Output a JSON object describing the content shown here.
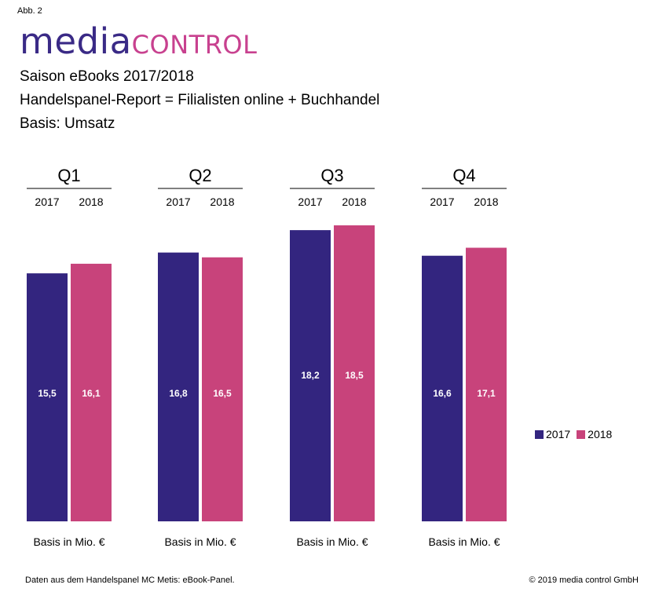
{
  "header": {
    "fig_label": "Abb. 2",
    "logo_part1": "media",
    "logo_part2": "control",
    "line1": "Saison eBooks 2017/2018",
    "line2": "Handelspanel-Report = Filialisten online + Buchhandel",
    "line3": "Basis: Umsatz"
  },
  "colors": {
    "series_2017": "#33257f",
    "series_2018": "#c8437b"
  },
  "chart_data": {
    "type": "bar",
    "categories": [
      "Q1",
      "Q2",
      "Q3",
      "Q4"
    ],
    "year_labels": [
      "2017",
      "2018"
    ],
    "series": [
      {
        "name": "2017",
        "values": [
          15.5,
          16.8,
          18.2,
          16.6
        ],
        "labels": [
          "15,5",
          "16,8",
          "18,2",
          "16,6"
        ]
      },
      {
        "name": "2018",
        "values": [
          16.1,
          16.5,
          18.5,
          17.1
        ],
        "labels": [
          "16,1",
          "16,5",
          "18,5",
          "17,1"
        ]
      }
    ],
    "bottom_label": "Basis in Mio. €",
    "legend_position": "right"
  },
  "footer": {
    "source": "Daten aus dem Handelspanel MC Metis: eBook-Panel.",
    "copyright": "© 2019 media control GmbH"
  }
}
